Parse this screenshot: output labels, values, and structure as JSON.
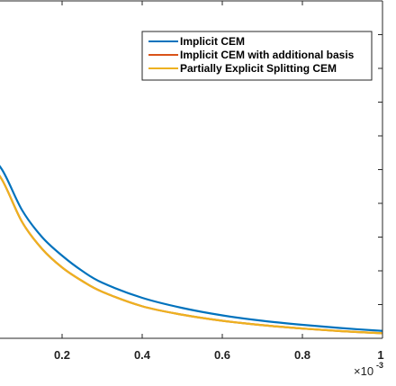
{
  "chart_data": {
    "type": "line",
    "title": "",
    "xlabel": "",
    "ylabel": "",
    "x_tick_labels": [
      "0.2",
      "0.4",
      "0.6",
      "0.8",
      "1"
    ],
    "x_exponent": {
      "base": "×10",
      "power": "-3"
    },
    "x_multiplier": 0.001,
    "xlim": [
      0.0,
      1.0
    ],
    "ylim": [
      0.0,
      1.0
    ],
    "grid": false,
    "legend_placement": "top-right",
    "series": [
      {
        "name": "Implicit CEM",
        "color": "#0072BD",
        "x": [
          0.0,
          0.05,
          0.1,
          0.15,
          0.2,
          0.25,
          0.3,
          0.4,
          0.5,
          0.6,
          0.7,
          0.8,
          0.9,
          1.0
        ],
        "y": [
          0.57,
          0.5,
          0.38,
          0.3,
          0.245,
          0.2,
          0.165,
          0.12,
          0.09,
          0.068,
          0.052,
          0.04,
          0.03,
          0.022
        ]
      },
      {
        "name": "Implicit CEM with additional basis",
        "color": "#D95319",
        "x": [
          0.0,
          0.05,
          0.1,
          0.15,
          0.2,
          0.25,
          0.3,
          0.4,
          0.5,
          0.6,
          0.7,
          0.8,
          0.9,
          1.0
        ],
        "y": [
          0.55,
          0.47,
          0.345,
          0.265,
          0.21,
          0.17,
          0.138,
          0.095,
          0.07,
          0.052,
          0.039,
          0.029,
          0.021,
          0.015
        ]
      },
      {
        "name": "Partially Explicit Splitting CEM",
        "color": "#EDB120",
        "x": [
          0.0,
          0.05,
          0.1,
          0.15,
          0.2,
          0.25,
          0.3,
          0.4,
          0.5,
          0.6,
          0.7,
          0.8,
          0.9,
          1.0
        ],
        "y": [
          0.55,
          0.47,
          0.345,
          0.265,
          0.21,
          0.17,
          0.138,
          0.095,
          0.07,
          0.052,
          0.039,
          0.029,
          0.021,
          0.015
        ]
      }
    ]
  }
}
